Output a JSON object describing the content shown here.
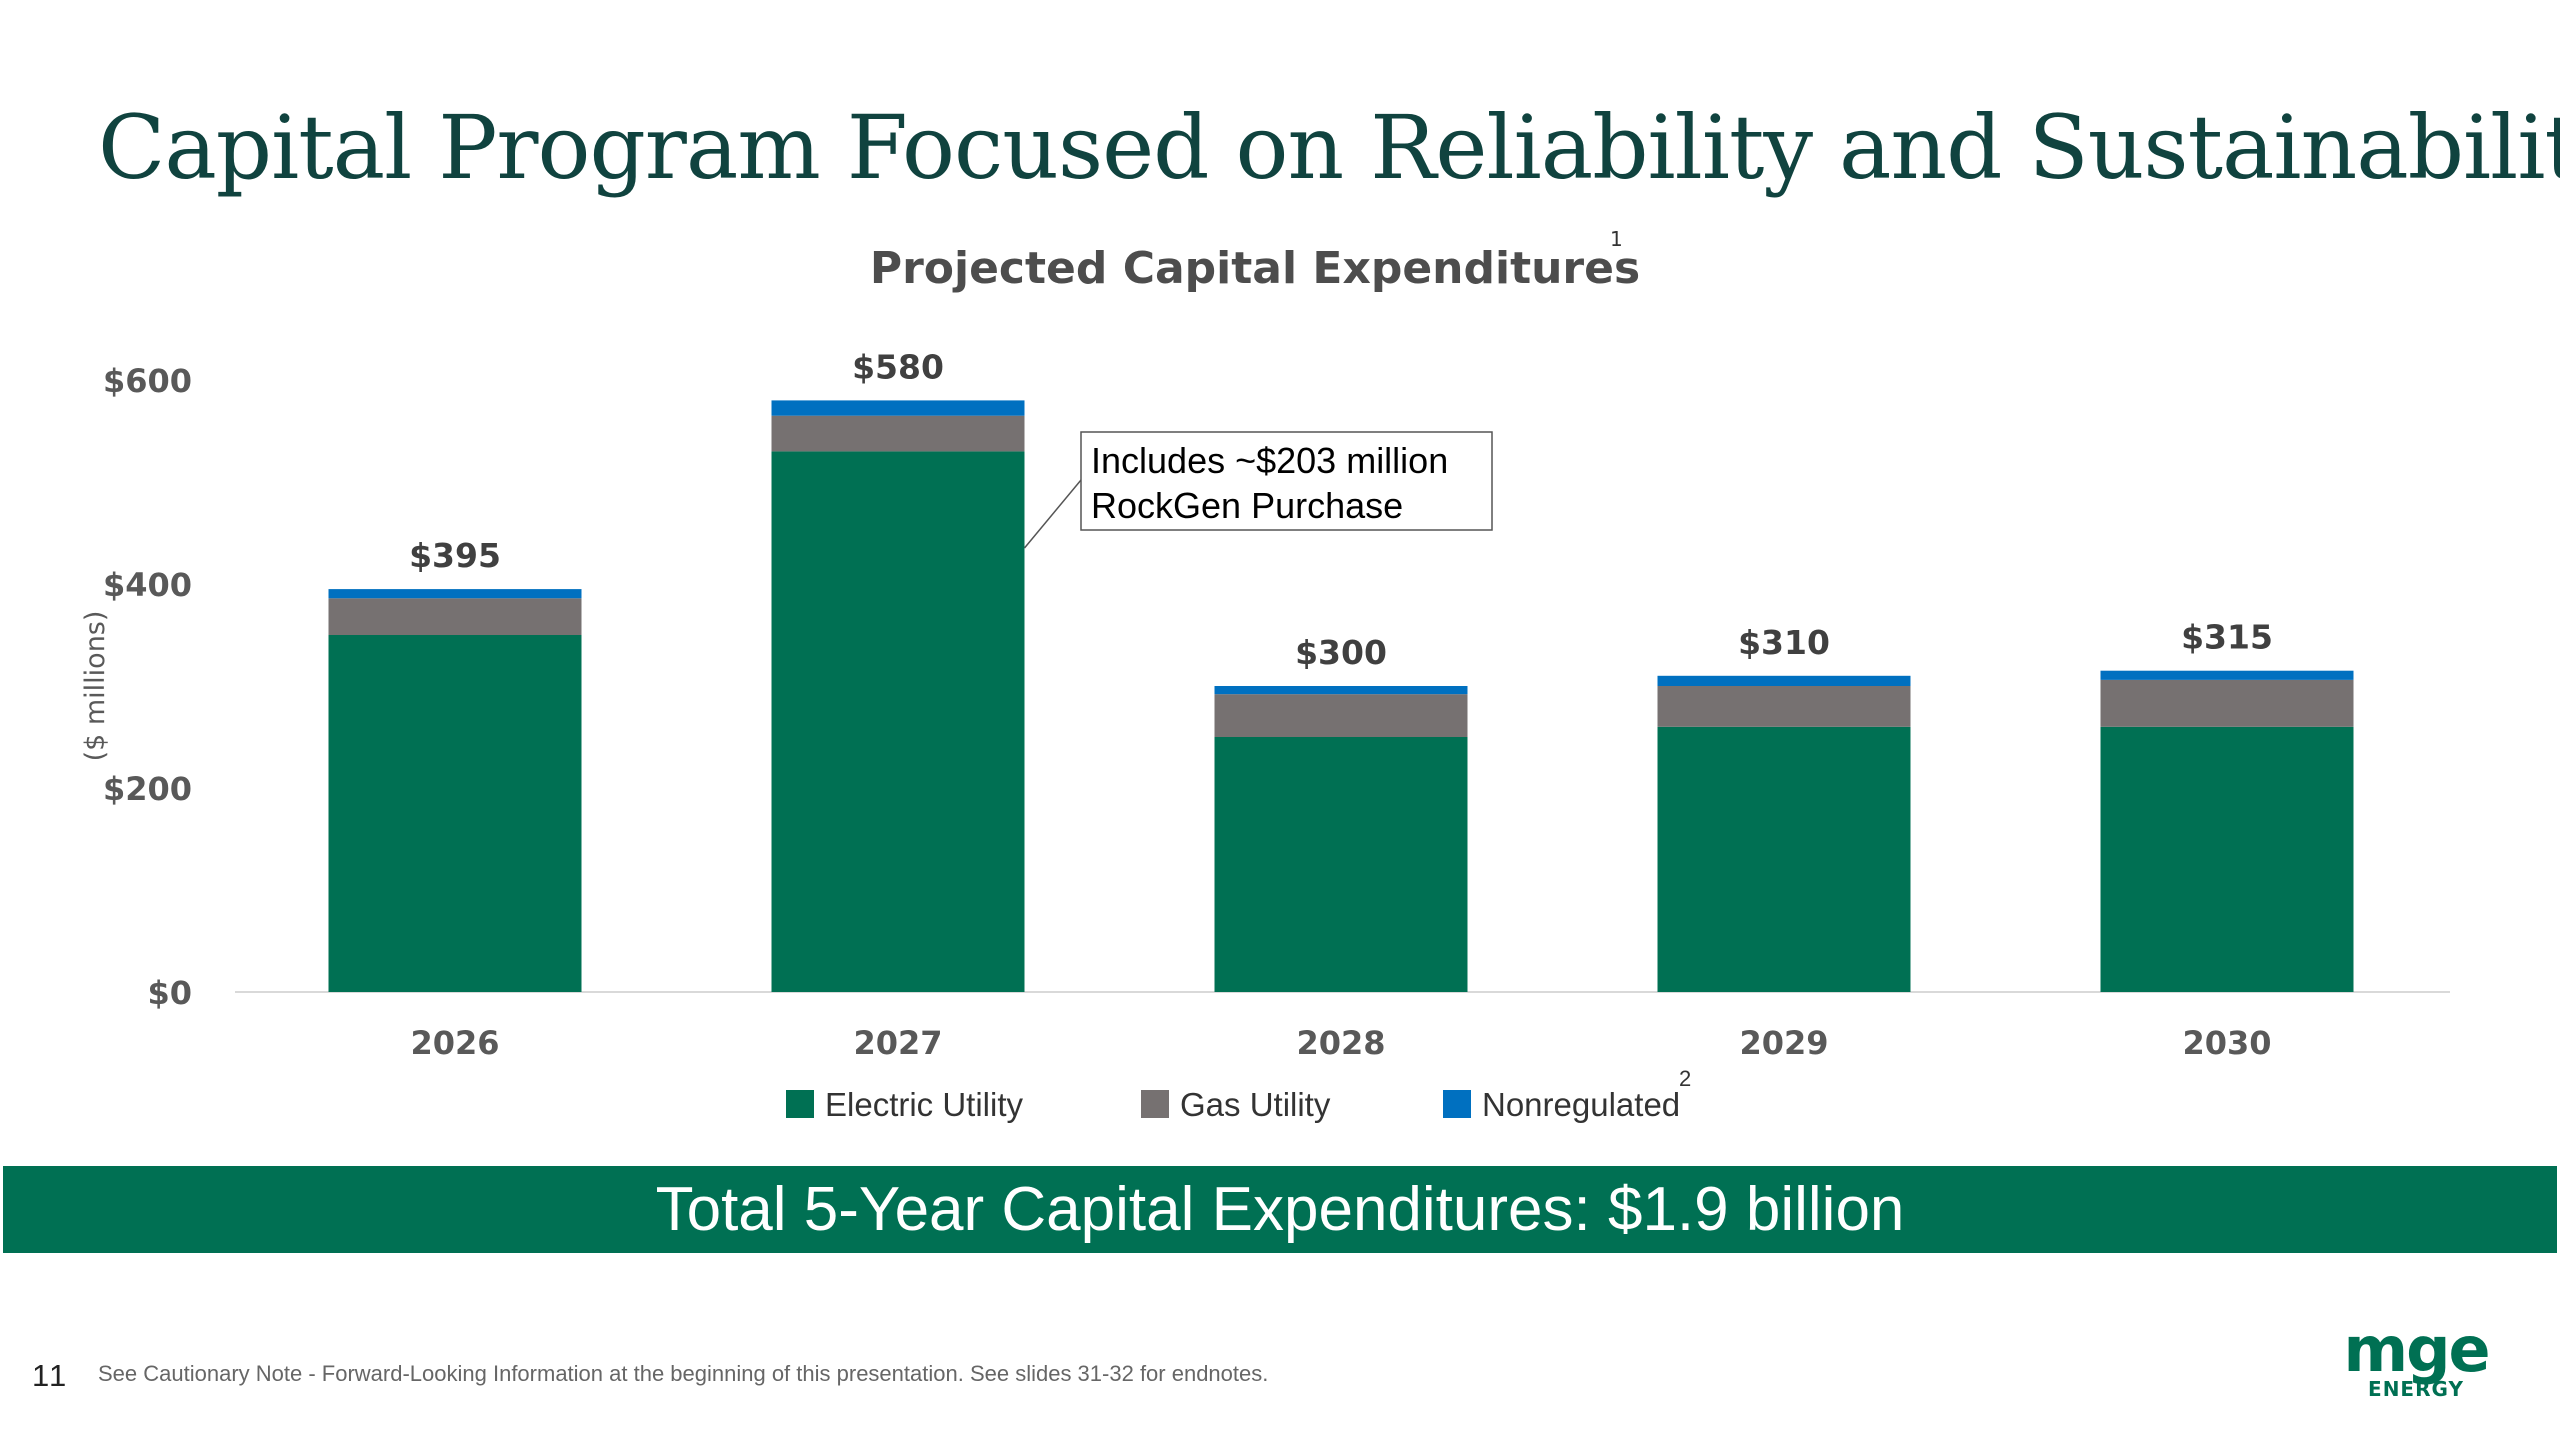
{
  "slide": {
    "title": "Capital Program Focused on Reliability and Sustainability",
    "banner_text": "Total 5-Year Capital Expenditures: $1.9 billion",
    "page_number": "11",
    "footnote": "See Cautionary Note - Forward-Looking Information at the beginning of this presentation. See slides 31-32 for endnotes.",
    "logo": {
      "mark_text": "mge",
      "word_text": "ENERGY",
      "color": "#007053"
    }
  },
  "chart_data": {
    "type": "bar",
    "stacked": true,
    "title": "Projected Capital Expenditures",
    "title_superscript": "1",
    "xlabel": "",
    "ylabel": "($ millions)",
    "ylim": [
      0,
      600
    ],
    "yticks": [
      0,
      200,
      400,
      600
    ],
    "ytick_labels": [
      "$0",
      "$200",
      "$400",
      "$600"
    ],
    "categories": [
      "2026",
      "2027",
      "2028",
      "2029",
      "2030"
    ],
    "series": [
      {
        "name": "Electric Utility",
        "color": "#007053",
        "values": [
          350,
          530,
          250,
          260,
          260
        ]
      },
      {
        "name": "Gas Utility",
        "color": "#767171",
        "values": [
          36,
          35,
          42,
          40,
          46
        ]
      },
      {
        "name": "Nonregulated",
        "name_superscript": "2",
        "color": "#0070c0",
        "values": [
          9,
          15,
          8,
          10,
          9
        ]
      }
    ],
    "totals": [
      395,
      580,
      300,
      310,
      315
    ],
    "total_labels": [
      "$395",
      "$580",
      "$300",
      "$310",
      "$315"
    ],
    "annotation": {
      "category": "2027",
      "lines": [
        "Includes ~$203 million",
        "RockGen Purchase"
      ]
    },
    "grid": false,
    "legend_position": "bottom"
  }
}
